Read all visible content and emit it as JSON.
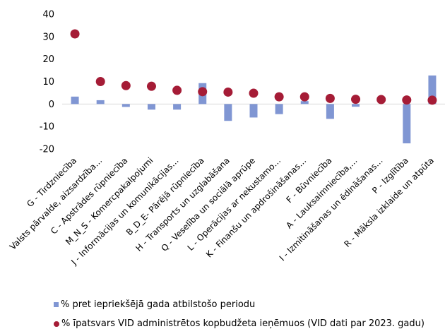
{
  "chart_data": {
    "type": "bar",
    "categories": [
      "G - Tirdzniecība",
      "Valsts pārvalde, aizsardzība…",
      "C - Apstrādes rūpniecība",
      "M_N_S - Komercpakalpojumi",
      "J - Informācijas un komunikācijas…",
      "B_D_E- Pārējā rūpniecība",
      "H - Transports un uzglabāšana",
      "Q - Veselība un sociālā aprūpe",
      "L - Operācijas ar nekustamo…",
      "K - Finanšu un apdrošināšanas…",
      "F - Būvniecība",
      "A - Lauksaimniecība,…",
      "I - Izmitināšanas un ēdināšanas…",
      "P - Izglītība",
      "R - Māksla izklaide un atpūta"
    ],
    "series": [
      {
        "name": "% pret iepriekšējā gada atbilstošo periodu",
        "type": "bar",
        "color": "#8096d3",
        "values": [
          3.3,
          1.7,
          -1.3,
          -2.5,
          -2.5,
          9.3,
          -7.5,
          -6,
          -4.5,
          1.3,
          -6.6,
          -1.2,
          0,
          -17.5,
          12.7
        ]
      },
      {
        "name": "% īpatsvars VID administrētos kopbudžeta ieņēmuos (VID dati par  2023. gadu)",
        "type": "scatter",
        "color": "#a51c36",
        "values": [
          31.2,
          10,
          8.2,
          7.9,
          6.1,
          5.5,
          5.3,
          4.8,
          3.2,
          3.2,
          2.5,
          2.1,
          2,
          1.8,
          1.7
        ]
      }
    ],
    "yticks": [
      40,
      30,
      20,
      10,
      0,
      -10,
      -20
    ],
    "ylim": [
      -20,
      40
    ],
    "grid": false,
    "legend_position": "bottom-left"
  }
}
